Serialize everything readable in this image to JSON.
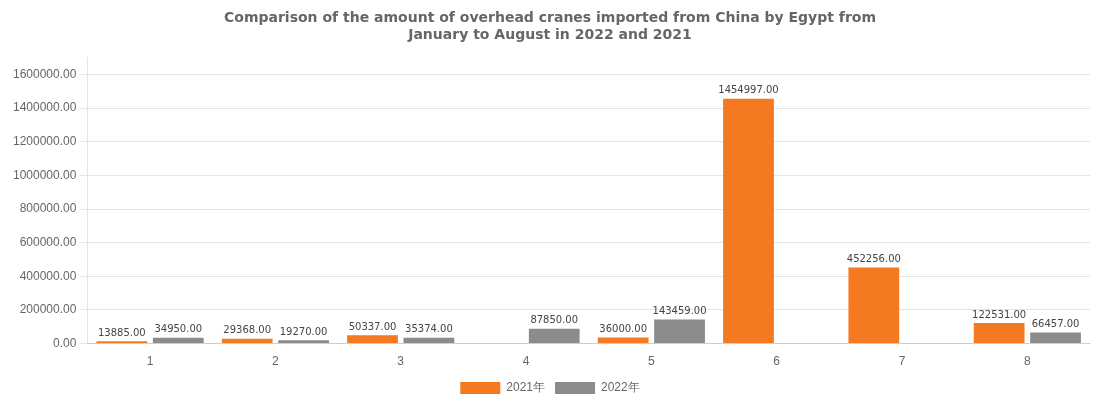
{
  "chart_data": {
    "type": "bar",
    "title": "Comparison of the amount of overhead cranes imported from China by Egypt from\nJanuary to August in 2022 and 2021",
    "categories": [
      "1",
      "2",
      "3",
      "4",
      "5",
      "6",
      "7",
      "8"
    ],
    "series": [
      {
        "name": "2021年",
        "color": "#F47920",
        "values": [
          13885,
          29368,
          50337,
          0,
          36000,
          1454997,
          452256,
          122531
        ],
        "value_labels": [
          "13885.00",
          "29368.00",
          "50337.00",
          null,
          "36000.00",
          "1454997.00",
          "452256.00",
          "122531.00"
        ]
      },
      {
        "name": "2022年",
        "color": "#8B8B8B",
        "values": [
          34950,
          19270,
          35374,
          87850,
          143459,
          0,
          0,
          66457
        ],
        "value_labels": [
          "34950.00",
          "19270.00",
          "35374.00",
          "87850.00",
          "143459.00",
          null,
          null,
          "66457.00"
        ]
      }
    ],
    "ylim": [
      0,
      1700000
    ],
    "yticks": [
      {
        "value": 0,
        "label": "0.00"
      },
      {
        "value": 200000,
        "label": "200000.00"
      },
      {
        "value": 400000,
        "label": "400000.00"
      },
      {
        "value": 600000,
        "label": "600000.00"
      },
      {
        "value": 800000,
        "label": "800000.00"
      },
      {
        "value": 1000000,
        "label": "1000000.00"
      },
      {
        "value": 1200000,
        "label": "1200000.00"
      },
      {
        "value": 1400000,
        "label": "1400000.00"
      },
      {
        "value": 1600000,
        "label": "1600000.00"
      }
    ],
    "grid": true,
    "legend": "bottom",
    "data_labels": true
  }
}
